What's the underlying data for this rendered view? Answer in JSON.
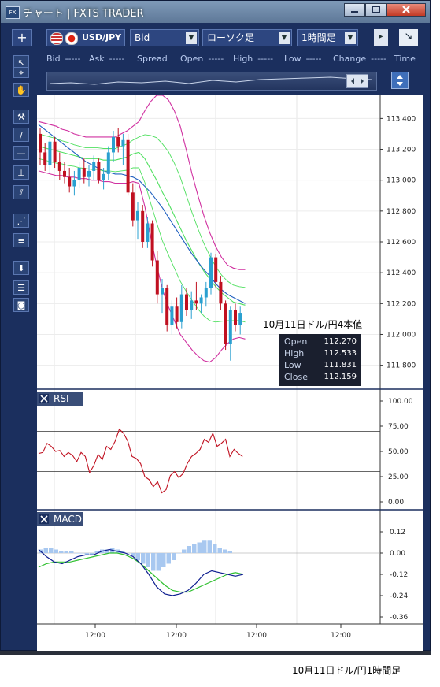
{
  "window": {
    "title": "チャート | FXTS TRADER",
    "app_icon": "fx-logo-icon"
  },
  "toolbar": {
    "add_label": "+",
    "symbol": "USD/JPY",
    "price_type": "Bid",
    "chart_type": "ローソク足",
    "timeframe": "1時間足",
    "dropdown_glyph": "▼",
    "scroll_glyph": "▸",
    "expand_glyph": "↘"
  },
  "quote_bar": {
    "fields": [
      {
        "label": "Bid",
        "value": "-----"
      },
      {
        "label": "Ask",
        "value": "-----"
      },
      {
        "label": "Spread",
        "value": ""
      },
      {
        "label": "Open",
        "value": "-----"
      },
      {
        "label": "High",
        "value": "-----"
      },
      {
        "label": "Low",
        "value": "-----"
      },
      {
        "label": "Change",
        "value": "-----"
      },
      {
        "label": "Time",
        "value": ""
      }
    ]
  },
  "left_tools": [
    {
      "name": "select-arrow-icon",
      "glyph": "↖"
    },
    {
      "name": "crosshair-icon",
      "glyph": "⌖"
    },
    {
      "name": "hand-pan-icon",
      "glyph": "✋"
    },
    {
      "name": "hammer-icon",
      "glyph": "⚒"
    },
    {
      "name": "trendline-icon",
      "glyph": "/"
    },
    {
      "name": "horizontal-line-icon",
      "glyph": "—"
    },
    {
      "name": "vertical-line-icon",
      "glyph": "⊥"
    },
    {
      "name": "parallel-lines-icon",
      "glyph": "⫽"
    },
    {
      "name": "fan-icon",
      "glyph": "⋰"
    },
    {
      "name": "fibonacci-icon",
      "glyph": "≡"
    },
    {
      "name": "download-icon",
      "glyph": "⬇"
    },
    {
      "name": "list-icon",
      "glyph": "☰"
    },
    {
      "name": "camera-icon",
      "glyph": "◙"
    }
  ],
  "price_axis": [
    "113.400",
    "113.200",
    "113.000",
    "112.800",
    "112.600",
    "112.400",
    "112.200",
    "112.000",
    "111.800"
  ],
  "rsi": {
    "title": "RSI",
    "axis": [
      "100.00",
      "75.00",
      "50.00",
      "25.00",
      "0.00"
    ],
    "levels": [
      70,
      30
    ]
  },
  "macd": {
    "title": "MACD",
    "axis": [
      "0.12",
      "0.00",
      "-0.12",
      "-0.24",
      "-0.36"
    ]
  },
  "time_axis": [
    "12:00",
    "12:00",
    "12:00",
    "12:00"
  ],
  "ohlc": [
    {
      "label": "Open",
      "value": "112.270"
    },
    {
      "label": "High",
      "value": "112.533"
    },
    {
      "label": "Low",
      "value": "111.831"
    },
    {
      "label": "Close",
      "value": "112.159"
    }
  ],
  "annotation": "10月11日ドル/円4本値",
  "caption": "10月11日ドル/円1時間足",
  "colors": {
    "frame": "#1b2f5e",
    "bollinger_outer": "#d030a0",
    "bollinger_inner": "#50e060",
    "ma": "#2060c0",
    "candle_up": "#2aa0d0",
    "candle_down": "#c01020",
    "rsi": "#c01020",
    "macd": "#102090",
    "signal": "#30c030",
    "histogram": "#a8c8f0"
  },
  "chart_data": {
    "type": "candlestick",
    "symbol": "USD/JPY",
    "timeframe": "1時間足",
    "price_range": [
      111.65,
      113.55
    ],
    "candles": [
      [
        113.3,
        113.34,
        113.1,
        113.18
      ],
      [
        113.18,
        113.24,
        113.06,
        113.1
      ],
      [
        113.1,
        113.3,
        113.05,
        113.25
      ],
      [
        113.25,
        113.28,
        113.08,
        113.12
      ],
      [
        113.12,
        113.18,
        113.0,
        113.06
      ],
      [
        113.06,
        113.12,
        112.98,
        113.02
      ],
      [
        113.02,
        113.08,
        112.92,
        112.96
      ],
      [
        112.96,
        113.06,
        112.9,
        113.0
      ],
      [
        113.0,
        113.12,
        112.95,
        113.08
      ],
      [
        113.08,
        113.14,
        112.98,
        113.02
      ],
      [
        113.02,
        113.1,
        112.96,
        113.06
      ],
      [
        113.06,
        113.16,
        113.0,
        113.12
      ],
      [
        113.12,
        113.14,
        112.98,
        113.0
      ],
      [
        113.0,
        113.08,
        112.94,
        113.04
      ],
      [
        113.04,
        113.22,
        113.0,
        113.18
      ],
      [
        113.18,
        113.32,
        113.12,
        113.28
      ],
      [
        113.28,
        113.34,
        113.18,
        113.22
      ],
      [
        113.22,
        113.3,
        113.1,
        113.26
      ],
      [
        113.26,
        113.3,
        112.9,
        112.92
      ],
      [
        112.92,
        112.98,
        112.7,
        112.74
      ],
      [
        112.74,
        112.86,
        112.62,
        112.8
      ],
      [
        112.8,
        112.84,
        112.56,
        112.6
      ],
      [
        112.6,
        112.76,
        112.56,
        112.72
      ],
      [
        112.72,
        112.74,
        112.44,
        112.48
      ],
      [
        112.48,
        112.54,
        112.2,
        112.26
      ],
      [
        112.26,
        112.36,
        112.14,
        112.3
      ],
      [
        112.3,
        112.32,
        112.02,
        112.06
      ],
      [
        112.06,
        112.22,
        112.0,
        112.18
      ],
      [
        112.18,
        112.24,
        112.04,
        112.08
      ],
      [
        112.08,
        112.32,
        112.04,
        112.26
      ],
      [
        112.26,
        112.3,
        112.12,
        112.16
      ],
      [
        112.16,
        112.28,
        112.1,
        112.22
      ],
      [
        112.22,
        112.34,
        112.16,
        112.2
      ],
      [
        112.2,
        112.26,
        112.14,
        112.24
      ],
      [
        112.24,
        112.34,
        112.18,
        112.3
      ],
      [
        112.3,
        112.53,
        112.26,
        112.5
      ],
      [
        112.5,
        112.52,
        112.3,
        112.34
      ],
      [
        112.34,
        112.38,
        112.16,
        112.2
      ],
      [
        112.2,
        112.22,
        111.9,
        111.94
      ],
      [
        111.94,
        112.18,
        111.83,
        112.16
      ],
      [
        112.16,
        112.2,
        112.02,
        112.06
      ],
      [
        112.06,
        112.18,
        112.0,
        112.14
      ]
    ],
    "bollinger": {
      "upper": [
        113.38,
        113.37,
        113.36,
        113.35,
        113.33,
        113.32,
        113.3,
        113.29,
        113.28,
        113.28,
        113.28,
        113.28,
        113.28,
        113.28,
        113.3,
        113.32,
        113.35,
        113.38,
        113.45,
        113.51,
        113.55,
        113.55,
        113.52,
        113.45,
        113.35,
        113.2,
        113.04,
        112.9,
        112.77,
        112.66,
        112.57,
        112.5,
        112.45,
        112.43,
        112.42,
        112.42
      ],
      "middle": [
        113.22,
        113.21,
        113.2,
        113.19,
        113.18,
        113.17,
        113.16,
        113.15,
        113.14,
        113.14,
        113.14,
        113.13,
        113.13,
        113.13,
        113.14,
        113.15,
        113.17,
        113.18,
        113.14,
        113.07,
        113.0,
        112.92,
        112.85,
        112.77,
        112.69,
        112.61,
        112.54,
        112.47,
        112.41,
        112.36,
        112.31,
        112.27,
        112.24,
        112.21,
        112.2,
        112.19
      ],
      "lower": [
        113.06,
        113.05,
        113.04,
        113.03,
        113.03,
        113.02,
        113.02,
        113.01,
        113.01,
        113.0,
        113.0,
        112.99,
        112.99,
        112.98,
        112.98,
        112.98,
        112.99,
        112.98,
        112.83,
        112.63,
        112.45,
        112.29,
        112.18,
        112.09,
        112.0,
        111.95,
        111.9,
        111.86,
        111.83,
        111.82,
        111.85,
        111.9,
        111.94,
        111.97,
        111.98,
        111.97
      ]
    },
    "ma": [
      113.36,
      113.33,
      113.3,
      113.27,
      113.24,
      113.21,
      113.18,
      113.15,
      113.12,
      113.1,
      113.08,
      113.06,
      113.05,
      113.04,
      113.04,
      113.03,
      113.02,
      113.0,
      112.96,
      112.92,
      112.87,
      112.82,
      112.76,
      112.7,
      112.64,
      112.58,
      112.52,
      112.47,
      112.42,
      112.38,
      112.33,
      112.29,
      112.26,
      112.24,
      112.22,
      112.2
    ],
    "rsi_values": [
      48,
      49,
      58,
      55,
      50,
      51,
      45,
      49,
      46,
      40,
      49,
      45,
      29,
      36,
      47,
      42,
      55,
      52,
      60,
      72,
      68,
      60,
      45,
      43,
      38,
      25,
      22,
      15,
      20,
      9,
      12,
      26,
      30,
      24,
      28,
      38,
      45,
      48,
      52,
      62,
      59,
      68,
      55,
      58,
      62,
      45,
      52,
      48,
      45
    ],
    "macd_values": [
      0.02,
      -0.02,
      -0.05,
      -0.06,
      -0.04,
      -0.02,
      -0.01,
      -0.01,
      0.01,
      0.02,
      0.01,
      0.0,
      -0.02,
      -0.06,
      -0.12,
      -0.19,
      -0.23,
      -0.24,
      -0.23,
      -0.21,
      -0.17,
      -0.12,
      -0.1,
      -0.11,
      -0.12,
      -0.13,
      -0.12
    ],
    "signal_values": [
      -0.08,
      -0.06,
      -0.05,
      -0.05,
      -0.05,
      -0.04,
      -0.03,
      -0.02,
      -0.01,
      0.0,
      0.0,
      -0.01,
      -0.03,
      -0.06,
      -0.1,
      -0.14,
      -0.18,
      -0.21,
      -0.22,
      -0.22,
      -0.2,
      -0.18,
      -0.16,
      -0.14,
      -0.12,
      -0.11,
      -0.12
    ],
    "histogram_values": [
      0.02,
      0.03,
      0.03,
      0.02,
      0.01,
      0.01,
      0.01,
      0.0,
      0.0,
      -0.01,
      -0.01,
      0.01,
      0.02,
      0.02,
      0.03,
      0.02,
      0.01,
      0.0,
      -0.02,
      -0.04,
      -0.06,
      -0.08,
      -0.1,
      -0.1,
      -0.08,
      -0.06,
      -0.04,
      0.0,
      0.02,
      0.04,
      0.05,
      0.06,
      0.07,
      0.07,
      0.05,
      0.03,
      0.02,
      0.01
    ]
  }
}
